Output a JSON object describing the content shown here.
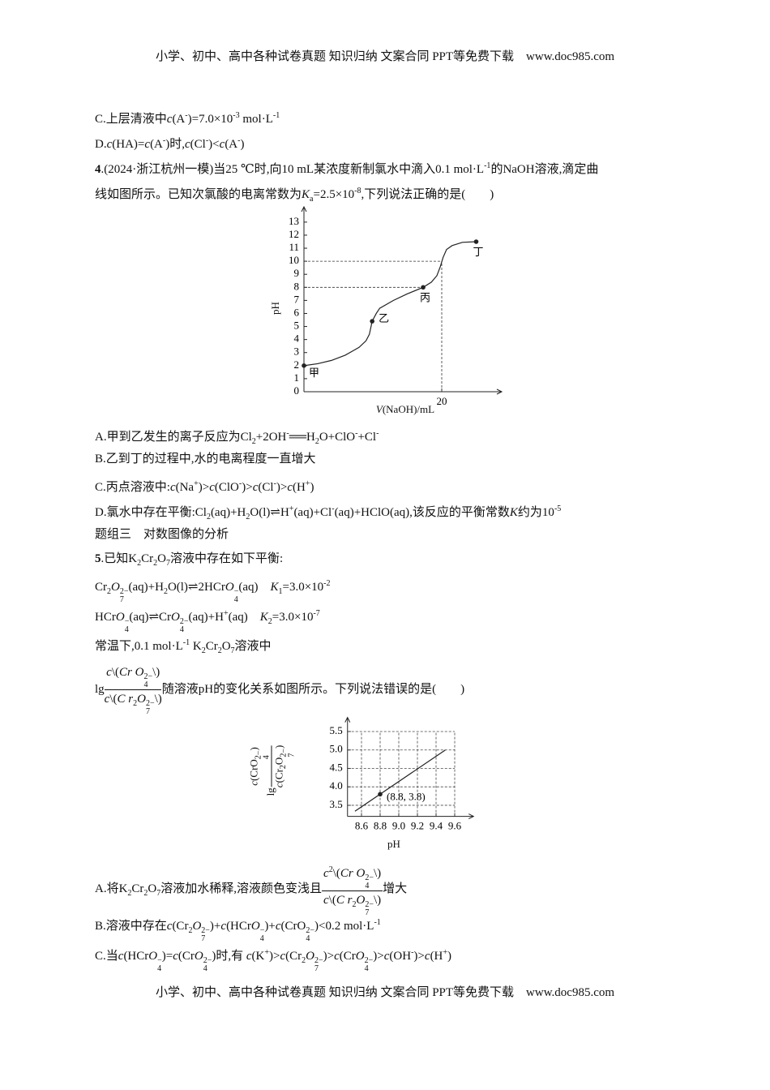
{
  "header": "小学、初中、高中各种试卷真题 知识归纳 文案合同 PPT等免费下载　www.doc985.com",
  "footer": "小学、初中、高中各种试卷真题 知识归纳 文案合同 PPT等免费下载　www.doc985.com",
  "blocks": [
    {
      "runs": [
        "C.上层清液中",
        {
          "i": "c"
        },
        "(A",
        {
          "sup": "-"
        },
        ")=7.0×10",
        {
          "sup": "-3"
        },
        " mol·L",
        {
          "sup": "-1"
        }
      ]
    },
    {
      "runs": [
        "D.",
        {
          "i": "c"
        },
        "(HA)=",
        {
          "i": "c"
        },
        "(A",
        {
          "sup": "-"
        },
        ")时,",
        {
          "i": "c"
        },
        "(Cl",
        {
          "sup": "-"
        },
        ")<",
        {
          "i": "c"
        },
        "(A",
        {
          "sup": "-"
        },
        ")"
      ]
    },
    {
      "runs": [
        {
          "b": "4"
        },
        ".(2024·浙江杭州一模)当25 ℃时,向10 mL某浓度新制氯水中滴入0.1 mol·L",
        {
          "sup": "-1"
        },
        "的NaOH溶液,滴定曲"
      ]
    },
    {
      "runs": [
        "线如图所示。已知次氯酸的电离常数为",
        {
          "i": "K"
        },
        {
          "sub": "a"
        },
        "=2.5×10",
        {
          "sup": "-8"
        },
        ",下列说法正确的是(　　)"
      ]
    },
    {
      "runs": [
        "A.甲到乙发生的离子反应为Cl",
        {
          "sub": "2"
        },
        "+2OH",
        {
          "sup": "-"
        },
        "══H",
        {
          "sub": "2"
        },
        "O+ClO",
        {
          "sup": "-"
        },
        "+Cl",
        {
          "sup": "-"
        }
      ]
    },
    {
      "runs": [
        "B.乙到丁的过程中,水的电离程度一直增大"
      ]
    },
    {
      "runs": [
        "C.丙点溶液中:",
        {
          "i": "c"
        },
        "(Na",
        {
          "sup": "+"
        },
        ")>",
        {
          "i": "c"
        },
        "(ClO",
        {
          "sup": "-"
        },
        ")>",
        {
          "i": "c"
        },
        "(Cl",
        {
          "sup": "-"
        },
        ")>",
        {
          "i": "c"
        },
        "(H",
        {
          "sup": "+"
        },
        ")"
      ]
    },
    {
      "runs": [
        "D.氯水中存在平衡:Cl",
        {
          "sub": "2"
        },
        "(aq)+H",
        {
          "sub": "2"
        },
        "O(l)⇌H",
        {
          "sup": "+"
        },
        "(aq)+Cl",
        {
          "sup": "-"
        },
        "(aq)+HClO(aq),该反应的平衡常数",
        {
          "i": "K"
        },
        "约为10",
        {
          "sup": "-5"
        }
      ]
    },
    {
      "runs": [
        "题组三　对数图像的分析"
      ]
    },
    {
      "runs": [
        {
          "b": "5"
        },
        ".已知K",
        {
          "sub": "2"
        },
        "Cr",
        {
          "sub": "2"
        },
        "O",
        {
          "sub": "7"
        },
        "溶液中存在如下平衡:"
      ]
    },
    {
      "runs": [
        "Cr",
        {
          "sub": "2"
        },
        {
          "i": "O"
        },
        {
          "ss": {
            "sub": "7",
            "sup": "2−"
          }
        },
        "(aq)+H",
        {
          "sub": "2"
        },
        "O(l)⇌2HCr",
        {
          "i": "O"
        },
        {
          "ss": {
            "sub": "4",
            "sup": "−"
          }
        },
        "(aq)　",
        {
          "i": "K"
        },
        {
          "sub": "1"
        },
        "=3.0×10",
        {
          "sup": "-2"
        }
      ]
    },
    {
      "runs": [
        "HCr",
        {
          "i": "O"
        },
        {
          "ss": {
            "sub": "4",
            "sup": "−"
          }
        },
        "(aq)⇌Cr",
        {
          "i": "O"
        },
        {
          "ss": {
            "sub": "4",
            "sup": "2−"
          }
        },
        "(aq)+H",
        {
          "sup": "+"
        },
        "(aq)　",
        {
          "i": "K"
        },
        {
          "sub": "2"
        },
        "=3.0×10",
        {
          "sup": "-7"
        }
      ]
    },
    {
      "runs": [
        "常温下,0.1 mol·L",
        {
          "sup": "-1"
        },
        " K",
        {
          "sub": "2"
        },
        "Cr",
        {
          "sub": "2"
        },
        "O",
        {
          "sub": "7"
        },
        "溶液中"
      ]
    },
    {
      "runs": [
        "lg",
        {
          "frac": {
            "num": [
              {
                "i": "c"
              },
              "\\(",
              {
                "i": "Cr O"
              },
              {
                "ss": {
                  "sub": "4",
                  "sup": "2−"
                }
              },
              "\\)"
            ],
            "den": [
              {
                "i": "c"
              },
              "\\(",
              {
                "i": "C r"
              },
              {
                "sub": "2"
              },
              {
                "i": "O"
              },
              {
                "ss": {
                  "sub": "7",
                  "sup": "2−"
                }
              },
              "\\)"
            ]
          }
        },
        "随溶液pH的变化关系如图所示。下列说法错误的是(　　)"
      ]
    },
    {
      "runs": [
        "A.将K",
        {
          "sub": "2"
        },
        "Cr",
        {
          "sub": "2"
        },
        "O",
        {
          "sub": "7"
        },
        "溶液加水稀释,溶液颜色变浅且",
        {
          "frac": {
            "num": [
              {
                "i": "c"
              },
              {
                "sup": "2"
              },
              "\\(",
              {
                "i": "Cr O"
              },
              {
                "ss": {
                  "sub": "4",
                  "sup": "2−"
                }
              },
              "\\)"
            ],
            "den": [
              {
                "i": "c"
              },
              "\\(",
              {
                "i": "C r"
              },
              {
                "sub": "2"
              },
              {
                "i": "O"
              },
              {
                "ss": {
                  "sub": "7",
                  "sup": "2−"
                }
              },
              "\\)"
            ]
          }
        },
        "增大"
      ]
    },
    {
      "runs": [
        "B.溶液中存在",
        {
          "i": "c"
        },
        "(Cr",
        {
          "sub": "2"
        },
        {
          "i": "O"
        },
        {
          "ss": {
            "sub": "7",
            "sup": "2−"
          }
        },
        ")+",
        {
          "i": "c"
        },
        "(HCr",
        {
          "i": "O"
        },
        {
          "ss": {
            "sub": "4",
            "sup": "−"
          }
        },
        ")+",
        {
          "i": "c"
        },
        "(CrO",
        {
          "ss": {
            "sub": "4",
            "sup": "2−"
          }
        },
        ")<0.2 mol·L",
        {
          "sup": "-1"
        }
      ]
    },
    {
      "runs": [
        "C.当",
        {
          "i": "c"
        },
        "(HCr",
        {
          "i": "O"
        },
        {
          "ss": {
            "sub": "4",
            "sup": "−"
          }
        },
        ")=",
        {
          "i": "c"
        },
        "(Cr",
        {
          "i": "O"
        },
        {
          "ss": {
            "sub": "4",
            "sup": "2−"
          }
        },
        ")时,有 ",
        {
          "i": "c"
        },
        "(K",
        {
          "sup": "+"
        },
        ")>",
        {
          "i": "c"
        },
        "(Cr",
        {
          "sub": "2"
        },
        {
          "i": "O"
        },
        {
          "ss": {
            "sub": "7",
            "sup": "2−"
          }
        },
        ")>",
        {
          "i": "c"
        },
        "(Cr",
        {
          "i": "O"
        },
        {
          "ss": {
            "sub": "4",
            "sup": "2−"
          }
        },
        ")>",
        {
          "i": "c"
        },
        "(OH",
        {
          "sup": "-"
        },
        ")>",
        {
          "i": "c"
        },
        "(H",
        {
          "sup": "+"
        },
        ")"
      ]
    }
  ],
  "chart_data": [
    {
      "type": "line",
      "color": "#222222",
      "xlabel": [
        {
          "i": "V"
        },
        "(NaOH)/mL"
      ],
      "ylabel": [
        "pH"
      ],
      "xlim": [
        0,
        28
      ],
      "ylim": [
        0,
        13.8
      ],
      "xticks": [
        20
      ],
      "yticks": [
        0,
        1,
        2,
        3,
        4,
        5,
        6,
        7,
        8,
        9,
        10,
        11,
        12,
        13
      ],
      "x": [
        0,
        2,
        4,
        6,
        7,
        8,
        9,
        9.5,
        9.9,
        10.5,
        11,
        13,
        15,
        17.3,
        18.5,
        19.3,
        19.8,
        20.2,
        20.7,
        21.5,
        23,
        25
      ],
      "values": [
        2,
        2.15,
        2.4,
        2.8,
        3.1,
        3.4,
        3.9,
        4.4,
        5.4,
        6.0,
        6.4,
        7.0,
        7.5,
        8,
        8.4,
        8.9,
        9.6,
        10.3,
        10.9,
        11.2,
        11.45,
        11.5
      ],
      "points": [
        {
          "x": 0,
          "y": 2,
          "label": "甲"
        },
        {
          "x": 9.9,
          "y": 5.4,
          "label": "乙"
        },
        {
          "x": 17.3,
          "y": 8,
          "label": "丙"
        },
        {
          "x": 25,
          "y": 11.5,
          "label": "丁"
        }
      ],
      "reference_lines": [
        {
          "x": [
            0,
            20
          ],
          "y": [
            10,
            10
          ]
        },
        {
          "x": [
            0,
            17.3
          ],
          "y": [
            8,
            8
          ]
        },
        {
          "x": [
            20,
            20
          ],
          "y": [
            0,
            10
          ]
        }
      ]
    },
    {
      "type": "line",
      "color": "#222222",
      "grid": true,
      "xlabel": [
        "pH"
      ],
      "ylabel": [
        "lg",
        {
          "frac": {
            "num": [
              {
                "i": "c"
              },
              "(CrO",
              {
                "ss": {
                  "sub": "4",
                  "sup": "2−"
                }
              },
              ")"
            ],
            "den": [
              {
                "i": "c"
              },
              "(Cr",
              {
                "sub": "2"
              },
              "O",
              {
                "ss": {
                  "sub": "7",
                  "sup": "2−"
                }
              },
              ")"
            ]
          }
        }
      ],
      "xlim": [
        8.45,
        9.75
      ],
      "ylim": [
        3.2,
        5.75
      ],
      "xticks": [
        8.6,
        8.8,
        {
          "value": 9,
          "label": "9.0"
        },
        9.2,
        9.4,
        9.6
      ],
      "yticks": [
        3.5,
        {
          "value": 4,
          "label": "4.0"
        },
        4.5,
        {
          "value": 5,
          "label": "5.0"
        },
        5.5
      ],
      "x": [
        8.53,
        9.5
      ],
      "values": [
        3.34,
        5.0
      ],
      "points": [
        {
          "x": 8.8,
          "y": 3.8,
          "label": "(8.8, 3.8)"
        }
      ]
    }
  ]
}
